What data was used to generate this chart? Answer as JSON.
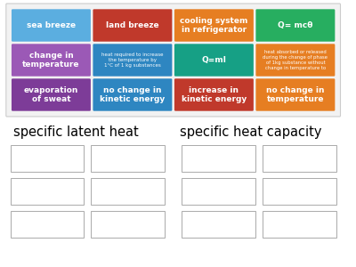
{
  "background_color": "#ffffff",
  "cards": [
    {
      "row": 0,
      "col": 0,
      "text": "sea breeze",
      "color": "#5baee0",
      "fontsize": 6.5,
      "bold": true
    },
    {
      "row": 0,
      "col": 1,
      "text": "land breeze",
      "color": "#c0392b",
      "fontsize": 6.5,
      "bold": true
    },
    {
      "row": 0,
      "col": 2,
      "text": "cooling system\nin refrigerator",
      "color": "#e67e22",
      "fontsize": 6.5,
      "bold": true
    },
    {
      "row": 0,
      "col": 3,
      "text": "Q= mcθ",
      "color": "#27ae60",
      "fontsize": 6.5,
      "bold": true
    },
    {
      "row": 1,
      "col": 0,
      "text": "change in\ntemperature",
      "color": "#9b59b6",
      "fontsize": 6.5,
      "bold": true
    },
    {
      "row": 1,
      "col": 1,
      "text": "heat required to increase\nthe temperature by\n1°C of 1 kg substances",
      "color": "#2e86c1",
      "fontsize": 4.0,
      "bold": false
    },
    {
      "row": 1,
      "col": 2,
      "text": "Q=ml",
      "color": "#16a085",
      "fontsize": 6.5,
      "bold": true
    },
    {
      "row": 1,
      "col": 3,
      "text": "heat absorbed or released\nduring the change of phase\nof 1kg substance without\nchange in temperature to",
      "color": "#e67e22",
      "fontsize": 3.8,
      "bold": false
    },
    {
      "row": 2,
      "col": 0,
      "text": "evaporation\nof sweat",
      "color": "#7d3c98",
      "fontsize": 6.5,
      "bold": true
    },
    {
      "row": 2,
      "col": 1,
      "text": "no change in\nkinetic energy",
      "color": "#2e86c1",
      "fontsize": 6.5,
      "bold": true
    },
    {
      "row": 2,
      "col": 2,
      "text": "increase in\nkinetic energy",
      "color": "#c0392b",
      "fontsize": 6.5,
      "bold": true
    },
    {
      "row": 2,
      "col": 3,
      "text": "no change in\ntemperature",
      "color": "#e67e22",
      "fontsize": 6.5,
      "bold": true
    }
  ],
  "label_left": "specific latent heat",
  "label_right": "specific heat capacity",
  "label_fontsize": 10.5,
  "card_border_color": "#cccccc",
  "card_area_bg": "#f2f2f2",
  "empty_box_color": "#aaaaaa"
}
